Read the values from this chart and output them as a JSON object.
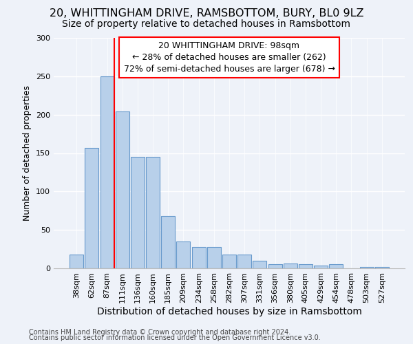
{
  "title": "20, WHITTINGHAM DRIVE, RAMSBOTTOM, BURY, BL0 9LZ",
  "subtitle": "Size of property relative to detached houses in Ramsbottom",
  "xlabel": "Distribution of detached houses by size in Ramsbottom",
  "ylabel": "Number of detached properties",
  "footnote1": "Contains HM Land Registry data © Crown copyright and database right 2024.",
  "footnote2": "Contains public sector information licensed under the Open Government Licence v3.0.",
  "bins": [
    "38sqm",
    "62sqm",
    "87sqm",
    "111sqm",
    "136sqm",
    "160sqm",
    "185sqm",
    "209sqm",
    "234sqm",
    "258sqm",
    "282sqm",
    "307sqm",
    "331sqm",
    "356sqm",
    "380sqm",
    "405sqm",
    "429sqm",
    "454sqm",
    "478sqm",
    "503sqm",
    "527sqm"
  ],
  "values": [
    18,
    157,
    250,
    204,
    145,
    145,
    68,
    35,
    28,
    28,
    18,
    18,
    10,
    5,
    6,
    5,
    4,
    5,
    0,
    2,
    2
  ],
  "bar_color": "#b8d0ea",
  "bar_edge_color": "#6699cc",
  "highlight_line_color": "red",
  "annotation_line1": "20 WHITTINGHAM DRIVE: 98sqm",
  "annotation_line2": "← 28% of detached houses are smaller (262)",
  "annotation_line3": "72% of semi-detached houses are larger (678) →",
  "ylim": [
    0,
    300
  ],
  "yticks": [
    0,
    50,
    100,
    150,
    200,
    250,
    300
  ],
  "bg_color": "#eef2f9",
  "grid_color": "#ffffff",
  "title_fontsize": 11.5,
  "subtitle_fontsize": 10,
  "xlabel_fontsize": 10,
  "ylabel_fontsize": 9,
  "tick_fontsize": 8,
  "annotation_fontsize": 9,
  "footnote_fontsize": 7
}
